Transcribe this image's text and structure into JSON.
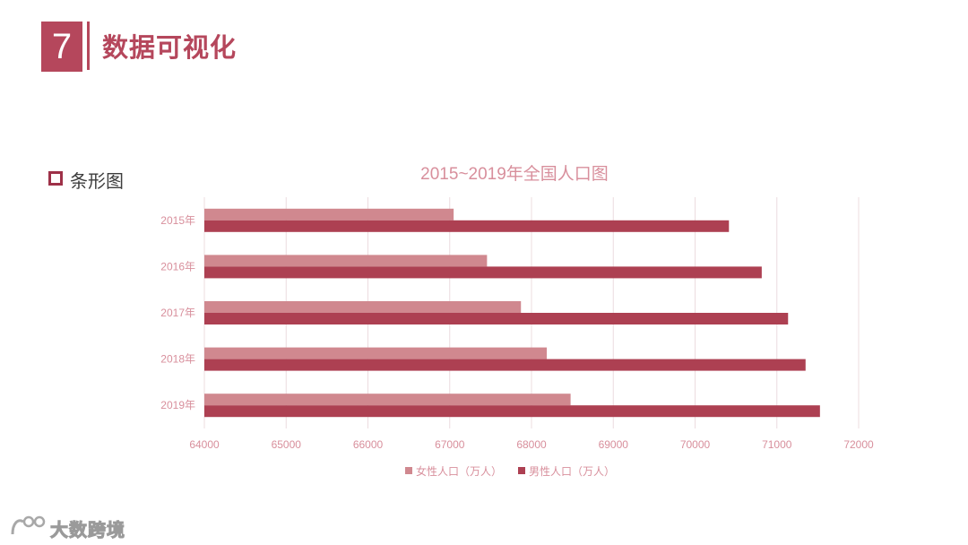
{
  "header": {
    "number": "7",
    "title": "数据可视化"
  },
  "section": {
    "label": "条形图"
  },
  "watermark": {
    "text": "大数跨境"
  },
  "colors": {
    "accent": "#b5475c",
    "female": "#d0888f",
    "male": "#ad4052",
    "label": "#d88f9c",
    "grid": "#ecdcdf"
  },
  "chart_data": {
    "type": "bar",
    "orientation": "horizontal",
    "title": "2015~2019年全国人口图",
    "categories": [
      "2015年",
      "2016年",
      "2017年",
      "2018年",
      "2019年"
    ],
    "series": [
      {
        "name": "女性人口（万人）",
        "values": [
          67048,
          67456,
          67871,
          68187,
          68478
        ]
      },
      {
        "name": "男性人口（万人）",
        "values": [
          70414,
          70815,
          71137,
          71351,
          71527
        ]
      }
    ],
    "xlim": [
      64000,
      72000
    ],
    "xticks": [
      64000,
      65000,
      66000,
      67000,
      68000,
      69000,
      70000,
      71000,
      72000
    ],
    "grid": true,
    "legend": "bottom"
  }
}
